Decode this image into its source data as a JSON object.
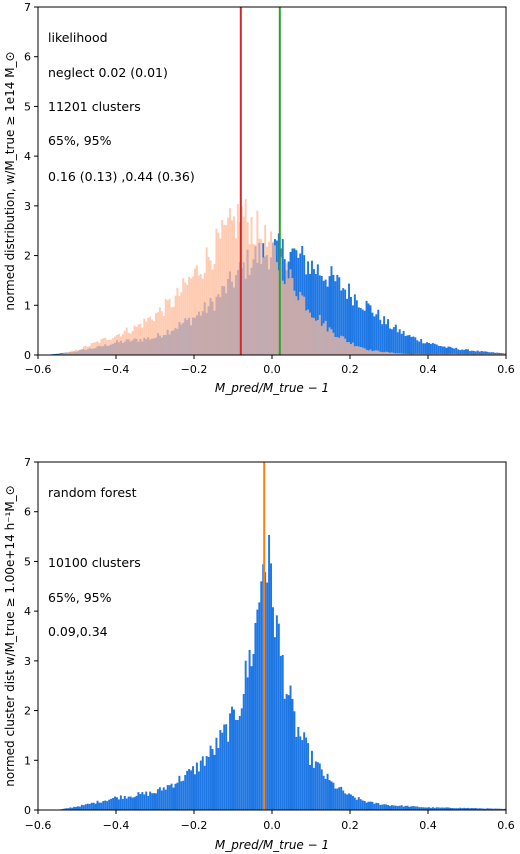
{
  "chart_data": [
    {
      "type": "bar",
      "xlabel": "M_pred/M_true − 1",
      "ylabel": "normed distribution, w/M_true ≥ 1e14 M_⊙",
      "xlim": [
        -0.6,
        0.6
      ],
      "ylim": [
        0,
        7
      ],
      "xticks": [
        "−0.6",
        "−0.4",
        "−0.2",
        "0.0",
        "0.2",
        "0.4",
        "0.6"
      ],
      "yticks": [
        "0",
        "1",
        "2",
        "3",
        "4",
        "5",
        "6",
        "7"
      ],
      "grid": false,
      "annotations": [
        "likelihood",
        "neglect 0.02 (0.01)",
        "11201 clusters",
        "65%, 95%",
        "0.16 (0.13) ,0.44 (0.36)"
      ],
      "vlines": [
        {
          "x": -0.08,
          "color": "#d62728"
        },
        {
          "x": 0.02,
          "color": "#2ca02c"
        }
      ],
      "series": [
        {
          "color": "#1f77e4",
          "points": [
            [
              -0.58,
              0.0
            ],
            [
              -0.52,
              0.05
            ],
            [
              -0.45,
              0.15
            ],
            [
              -0.4,
              0.25
            ],
            [
              -0.3,
              0.35
            ],
            [
              -0.25,
              0.55
            ],
            [
              -0.2,
              0.75
            ],
            [
              -0.15,
              1.05
            ],
            [
              -0.1,
              1.5
            ],
            [
              -0.05,
              1.95
            ],
            [
              0.0,
              2.1
            ],
            [
              0.05,
              2.05
            ],
            [
              0.1,
              1.8
            ],
            [
              0.15,
              1.55
            ],
            [
              0.2,
              1.25
            ],
            [
              0.25,
              0.95
            ],
            [
              0.3,
              0.6
            ],
            [
              0.35,
              0.38
            ],
            [
              0.4,
              0.25
            ],
            [
              0.45,
              0.15
            ],
            [
              0.5,
              0.1
            ],
            [
              0.55,
              0.06
            ],
            [
              0.6,
              0.03
            ]
          ]
        },
        {
          "color": "#ffbb99",
          "points": [
            [
              -0.55,
              0.0
            ],
            [
              -0.5,
              0.1
            ],
            [
              -0.45,
              0.25
            ],
            [
              -0.4,
              0.4
            ],
            [
              -0.35,
              0.55
            ],
            [
              -0.3,
              0.8
            ],
            [
              -0.25,
              1.1
            ],
            [
              -0.2,
              1.6
            ],
            [
              -0.15,
              2.1
            ],
            [
              -0.1,
              2.6
            ],
            [
              -0.08,
              2.85
            ],
            [
              -0.05,
              2.6
            ],
            [
              0.0,
              2.1
            ],
            [
              0.05,
              1.5
            ],
            [
              0.1,
              0.9
            ],
            [
              0.15,
              0.5
            ],
            [
              0.2,
              0.25
            ],
            [
              0.25,
              0.1
            ],
            [
              0.3,
              0.05
            ],
            [
              0.35,
              0.02
            ]
          ]
        }
      ]
    },
    {
      "type": "bar",
      "xlabel": "M_pred/M_true − 1",
      "ylabel": "normed cluster dist w/M_true ≥ 1.00e+14 h⁻¹M_⊙",
      "xlim": [
        -0.6,
        0.6
      ],
      "ylim": [
        0,
        7
      ],
      "xticks": [
        "−0.6",
        "−0.4",
        "−0.2",
        "0.0",
        "0.2",
        "0.4",
        "0.6"
      ],
      "yticks": [
        "0",
        "1",
        "2",
        "3",
        "4",
        "5",
        "6",
        "7"
      ],
      "grid": false,
      "annotations": [
        "random forest",
        "10100 clusters",
        "65%, 95%",
        "0.09,0.34"
      ],
      "vlines": [
        {
          "x": -0.02,
          "color": "#ff7f0e"
        }
      ],
      "series": [
        {
          "color": "#1f77e4",
          "points": [
            [
              -0.55,
              0.0
            ],
            [
              -0.48,
              0.1
            ],
            [
              -0.4,
              0.25
            ],
            [
              -0.3,
              0.35
            ],
            [
              -0.25,
              0.55
            ],
            [
              -0.2,
              0.8
            ],
            [
              -0.15,
              1.2
            ],
            [
              -0.1,
              1.8
            ],
            [
              -0.08,
              2.2
            ],
            [
              -0.06,
              2.9
            ],
            [
              -0.04,
              3.7
            ],
            [
              -0.02,
              5.3
            ],
            [
              0.0,
              4.5
            ],
            [
              0.02,
              3.2
            ],
            [
              0.04,
              2.4
            ],
            [
              0.06,
              1.7
            ],
            [
              0.1,
              1.05
            ],
            [
              0.15,
              0.55
            ],
            [
              0.2,
              0.28
            ],
            [
              0.25,
              0.15
            ],
            [
              0.3,
              0.1
            ],
            [
              0.4,
              0.05
            ],
            [
              0.5,
              0.04
            ],
            [
              0.6,
              0.02
            ]
          ]
        }
      ]
    }
  ]
}
